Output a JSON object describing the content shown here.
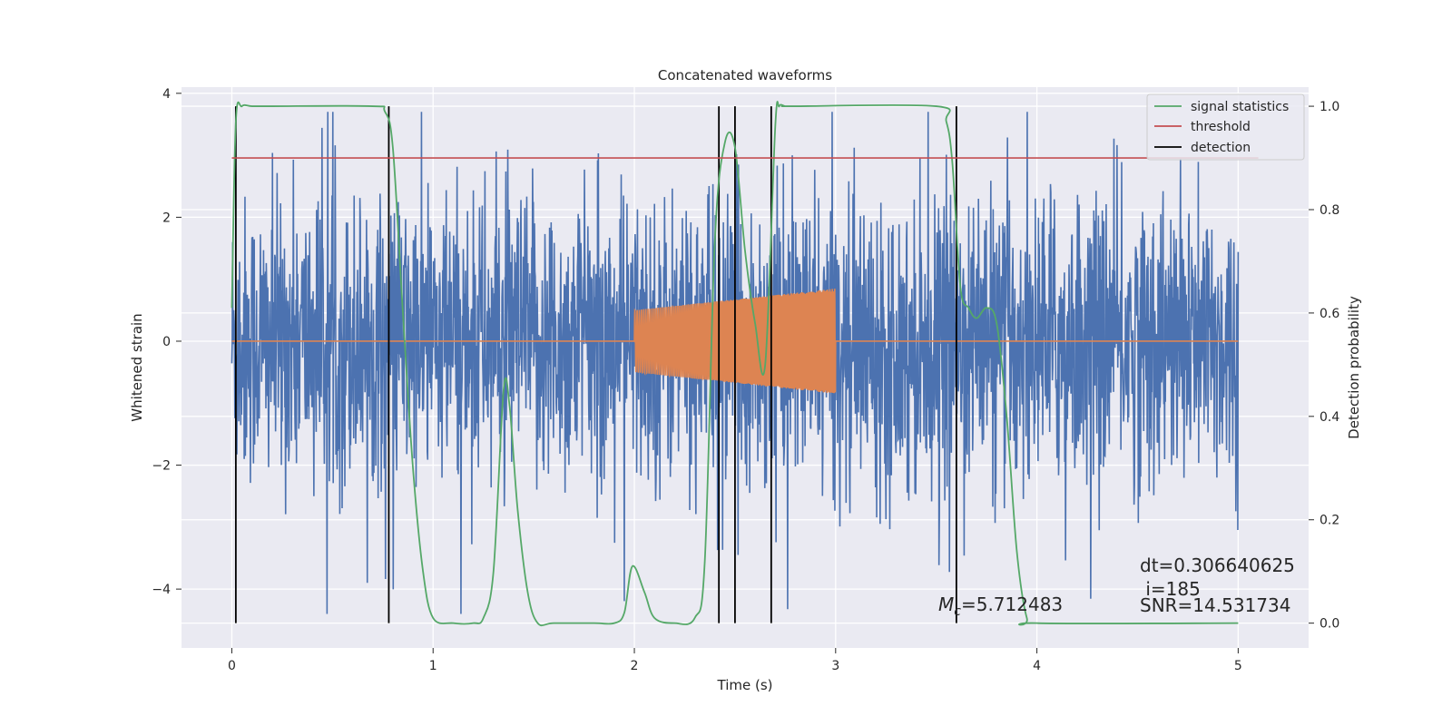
{
  "chart_data": {
    "type": "line",
    "title": "Concatenated waveforms",
    "xlabel": "Time (s)",
    "ylabel": "Whitened strain",
    "y2label": "Detection probability",
    "xlim": [
      -0.25,
      5.35
    ],
    "ylim": [
      -4.95,
      4.1
    ],
    "y2lim": [
      -0.048,
      1.037
    ],
    "xticks": [
      0,
      1,
      2,
      3,
      4,
      5
    ],
    "yticks": [
      -4,
      -2,
      0,
      2,
      4
    ],
    "y2ticks": [
      0.0,
      0.2,
      0.4,
      0.6,
      0.8,
      1.0
    ],
    "x_tick_labels": [
      "0",
      "1",
      "2",
      "3",
      "4",
      "5"
    ],
    "y_tick_labels": [
      "−4",
      "−2",
      "0",
      "2",
      "4"
    ],
    "y2_tick_labels": [
      "0.0",
      "0.2",
      "0.4",
      "0.6",
      "0.8",
      "1.0"
    ],
    "grid": true,
    "legend_position": "top-right",
    "legend": [
      {
        "label": "signal statistics",
        "color": "#55a868"
      },
      {
        "label": "threshold",
        "color": "#c44e52"
      },
      {
        "label": "detection",
        "color": "#000000"
      }
    ],
    "colors": {
      "strain": "#4c72b0",
      "template": "#dd8452",
      "signal_statistics": "#55a868",
      "threshold": "#c44e52",
      "detection": "#000000",
      "plot_background": "#eaeaf2",
      "grid": "#ffffff"
    },
    "series": [
      {
        "axis": "left",
        "description": "whitened strain noise, roughly zero-mean with amplitude about 1.5-3, spanning t=0..5",
        "x_range": [
          0,
          5
        ],
        "amplitude": 2.6
      },
      {
        "axis": "left",
        "description": "injected chirp template; zero outside 2..3 s, oscillation envelope growing from 0.5 to 0.85",
        "x_range": [
          2.0,
          3.0
        ],
        "amplitude_start": 0.5,
        "amplitude_end": 0.85
      },
      {
        "axis": "right",
        "x": [
          0.0,
          0.02,
          0.05,
          0.1,
          0.2,
          0.7,
          0.76,
          0.8,
          0.85,
          0.9,
          0.95,
          1.0,
          1.1,
          1.2,
          1.25,
          1.3,
          1.35,
          1.38,
          1.42,
          1.47,
          1.52,
          1.6,
          1.8,
          1.9,
          1.95,
          1.99,
          2.05,
          2.1,
          2.2,
          2.3,
          2.35,
          2.4,
          2.45,
          2.5,
          2.55,
          2.6,
          2.65,
          2.7,
          2.72,
          2.75,
          2.8,
          3.5,
          3.55,
          3.58,
          3.62,
          3.66,
          3.7,
          3.75,
          3.8,
          3.85,
          3.9,
          3.95,
          4.0,
          5.0
        ],
        "y": [
          0.61,
          0.97,
          1.0,
          1.0,
          1.0,
          1.0,
          0.99,
          0.92,
          0.6,
          0.3,
          0.1,
          0.01,
          0.0,
          0.0,
          0.01,
          0.1,
          0.45,
          0.42,
          0.22,
          0.06,
          0.0,
          0.0,
          0.0,
          0.0,
          0.02,
          0.11,
          0.06,
          0.01,
          0.0,
          0.01,
          0.12,
          0.74,
          0.93,
          0.92,
          0.72,
          0.58,
          0.5,
          0.96,
          1.0,
          1.0,
          1.0,
          1.0,
          0.97,
          0.89,
          0.65,
          0.61,
          0.59,
          0.61,
          0.58,
          0.4,
          0.14,
          0.01,
          0.0,
          0.0
        ]
      },
      {
        "axis": "right",
        "x": [
          0,
          5.1
        ],
        "y": [
          0.9,
          0.9
        ]
      }
    ],
    "detections_x": [
      0.02,
      0.78,
      2.42,
      2.5,
      2.68,
      3.6
    ],
    "annotations": [
      {
        "text_prefix": "M",
        "text_sub": "c",
        "text_value": "=5.712483",
        "x": 3.5,
        "y": -4.3
      },
      {
        "text": "dt=0.306640625",
        "x": 4.5,
        "y": -3.6
      },
      {
        "text": " i=185",
        "x": 4.5,
        "y": -4.05
      },
      {
        "text": "SNR=14.531734",
        "x": 4.5,
        "y": -4.3
      }
    ]
  }
}
